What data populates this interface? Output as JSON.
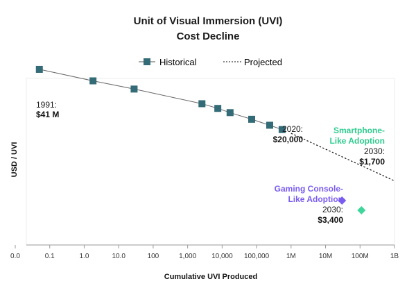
{
  "chart_data": {
    "type": "scatter",
    "title_line1": "Unit of Visual Immersion (UVI)",
    "title_line2": "Cost Decline",
    "xlabel": "Cumulative UVI Produced",
    "ylabel": "USD / UVI",
    "x_scale": "log",
    "x_ticks": [
      {
        "value": 0.01,
        "label": "0.0"
      },
      {
        "value": 0.1,
        "label": "0.1"
      },
      {
        "value": 1,
        "label": "1.0"
      },
      {
        "value": 10,
        "label": "10.0"
      },
      {
        "value": 100,
        "label": "100"
      },
      {
        "value": 1000,
        "label": "1,000"
      },
      {
        "value": 10000,
        "label": "10,000"
      },
      {
        "value": 100000,
        "label": "100,000"
      },
      {
        "value": 1000000,
        "label": "1M"
      },
      {
        "value": 10000000,
        "label": "10M"
      },
      {
        "value": 100000000,
        "label": "100M"
      },
      {
        "value": 1000000000,
        "label": "1B"
      }
    ],
    "y_scale": "log",
    "grid": false,
    "legend": {
      "position": "top",
      "historical": "Historical",
      "projected": "Projected"
    },
    "series": [
      {
        "name": "Historical",
        "marker": "square",
        "color": "#336b77",
        "points": [
          {
            "x": 0.05,
            "y": 41000000
          },
          {
            "x": 1.8,
            "y": 18000000
          },
          {
            "x": 28,
            "y": 10000000
          },
          {
            "x": 2600,
            "y": 3500000
          },
          {
            "x": 7500,
            "y": 2500000
          },
          {
            "x": 17000,
            "y": 1850000
          },
          {
            "x": 72000,
            "y": 1150000
          },
          {
            "x": 240000,
            "y": 750000
          },
          {
            "x": 550000,
            "y": 550000
          }
        ]
      },
      {
        "name": "Projected",
        "style": "dotted",
        "color": "#111111",
        "points": [
          {
            "x": 1000000,
            "y": 420000
          },
          {
            "x": 1000000000,
            "y": 14000
          }
        ]
      },
      {
        "name": "Gaming Console-Like Adoption",
        "marker": "diamond",
        "color": "#7b5cf0",
        "points": [
          {
            "x": 30000000,
            "y": 3400
          }
        ]
      },
      {
        "name": "Smartphone-Like Adoption",
        "marker": "diamond",
        "color": "#3ed69a",
        "points": [
          {
            "x": 110000000,
            "y": 1700
          }
        ]
      }
    ],
    "annotations": {
      "start_year": "1991:",
      "start_value": "$41 M",
      "mid_year": "2020:",
      "mid_value": "$20,000",
      "smartphone_line1": "Smartphone-",
      "smartphone_line2": "Like Adoption",
      "smartphone_year": "2030:",
      "smartphone_value": "$1,700",
      "console_line1": "Gaming Console-",
      "console_line2": "Like Adoption",
      "console_year": "2030:",
      "console_value": "$3,400"
    }
  }
}
